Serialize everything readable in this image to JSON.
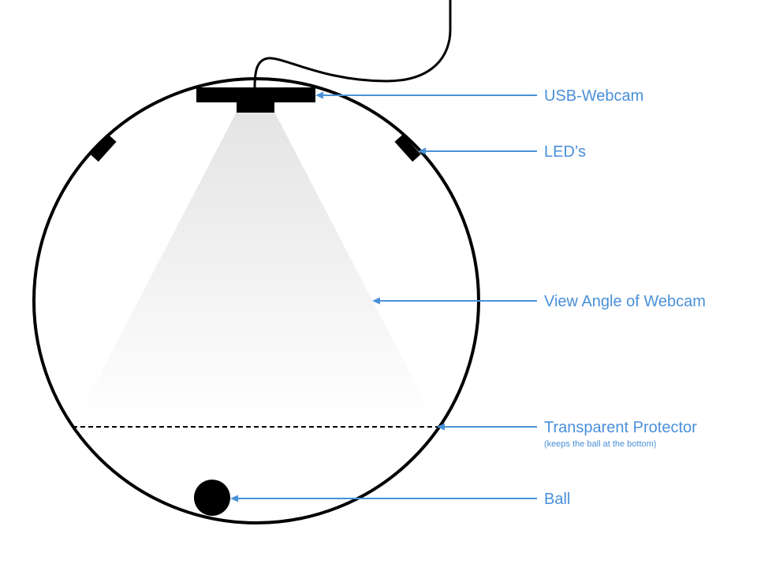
{
  "colors": {
    "stroke": "#000000",
    "annotation": "#4a90d9",
    "cone_top": "#e4e4e4",
    "cone_bottom": "#ffffff"
  },
  "annotations": {
    "webcam": "USB-Webcam",
    "leds": "LED’s",
    "view_angle": "View Angle of Webcam",
    "protector": "Transparent Protector",
    "protector_note": "(keeps the ball at the bottom)",
    "ball": "Ball"
  }
}
